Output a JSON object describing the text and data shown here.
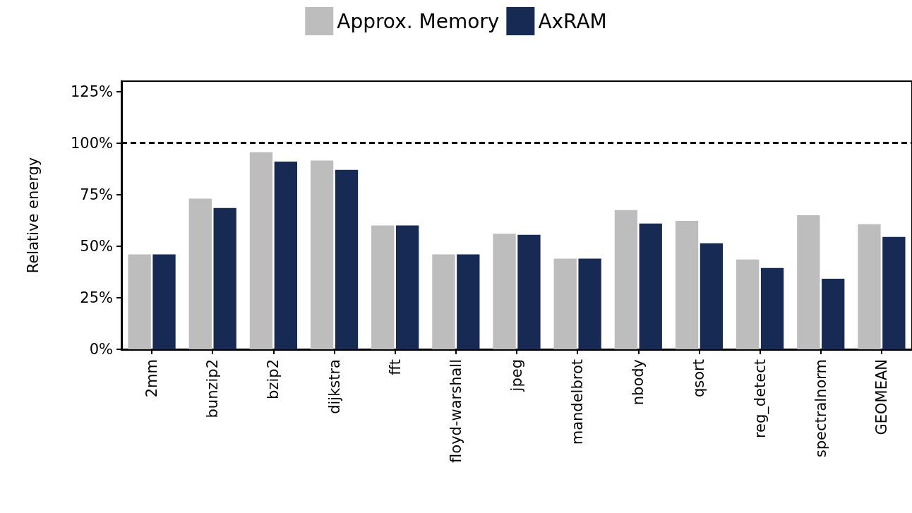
{
  "chart_data": {
    "type": "bar",
    "ylabel": "Relative energy",
    "categories": [
      "2mm",
      "bunzip2",
      "bzip2",
      "dijkstra",
      "fft",
      "floyd-warshall",
      "jpeg",
      "mandelbrot",
      "nbody",
      "qsort",
      "reg_detect",
      "spectralnorm",
      "GEOMEAN"
    ],
    "series": [
      {
        "name": "Approx. Memory",
        "color": "#bdbdbd",
        "values": [
          46,
          73,
          95.5,
          91.5,
          60,
          46,
          56,
          44,
          67.5,
          62.3,
          43.5,
          65,
          60.6
        ]
      },
      {
        "name": "AxRAM",
        "color": "#172a54",
        "values": [
          46,
          68.5,
          91,
          87,
          60,
          46,
          55.5,
          44,
          61,
          51.4,
          39.4,
          34.2,
          54.5
        ]
      }
    ],
    "ylim": [
      0,
      130
    ],
    "yticks": [
      {
        "value": 0,
        "label": "0%"
      },
      {
        "value": 25,
        "label": "25%"
      },
      {
        "value": 50,
        "label": "50%"
      },
      {
        "value": 75,
        "label": "75%"
      },
      {
        "value": 100,
        "label": "100%"
      },
      {
        "value": 125,
        "label": "125%"
      }
    ],
    "ref_lines": [
      {
        "axis": "y",
        "value": 100,
        "label": null,
        "color": "#000000",
        "line_style": "dashed"
      }
    ],
    "grid": false,
    "legend": "top"
  }
}
